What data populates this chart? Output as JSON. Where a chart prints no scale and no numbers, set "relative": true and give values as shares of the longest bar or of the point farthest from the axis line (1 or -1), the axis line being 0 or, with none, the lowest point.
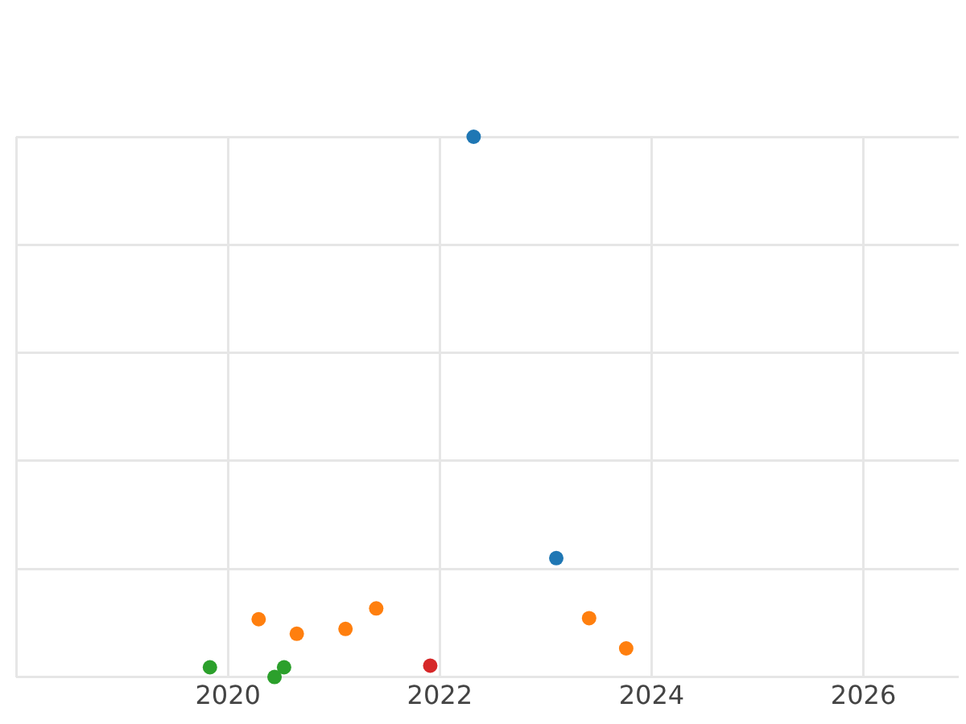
{
  "chart_data": {
    "type": "scatter",
    "relative": true,
    "grid": true,
    "marker": "circle",
    "xlim": [
      2018,
      2026.9
    ],
    "xticks": [
      2020,
      2022,
      2024,
      2026
    ],
    "series": [
      {
        "color": "#1f77b4",
        "x": [
          2022.32,
          2023.1
        ],
        "values": [
          1,
          0.22
        ]
      },
      {
        "color": "#ff7f0e",
        "x": [
          2020.29,
          2020.65,
          2021.11,
          2021.4,
          2023.41,
          2023.76
        ],
        "values": [
          0.107,
          0.08,
          0.089,
          0.127,
          0.109,
          0.053
        ]
      },
      {
        "color": "#2ca02c",
        "x": [
          2019.83,
          2020.44,
          2020.53
        ],
        "values": [
          0.018,
          0,
          0.018
        ]
      },
      {
        "color": "#d62728",
        "x": [
          2021.91
        ],
        "values": [
          0.021
        ]
      }
    ]
  }
}
